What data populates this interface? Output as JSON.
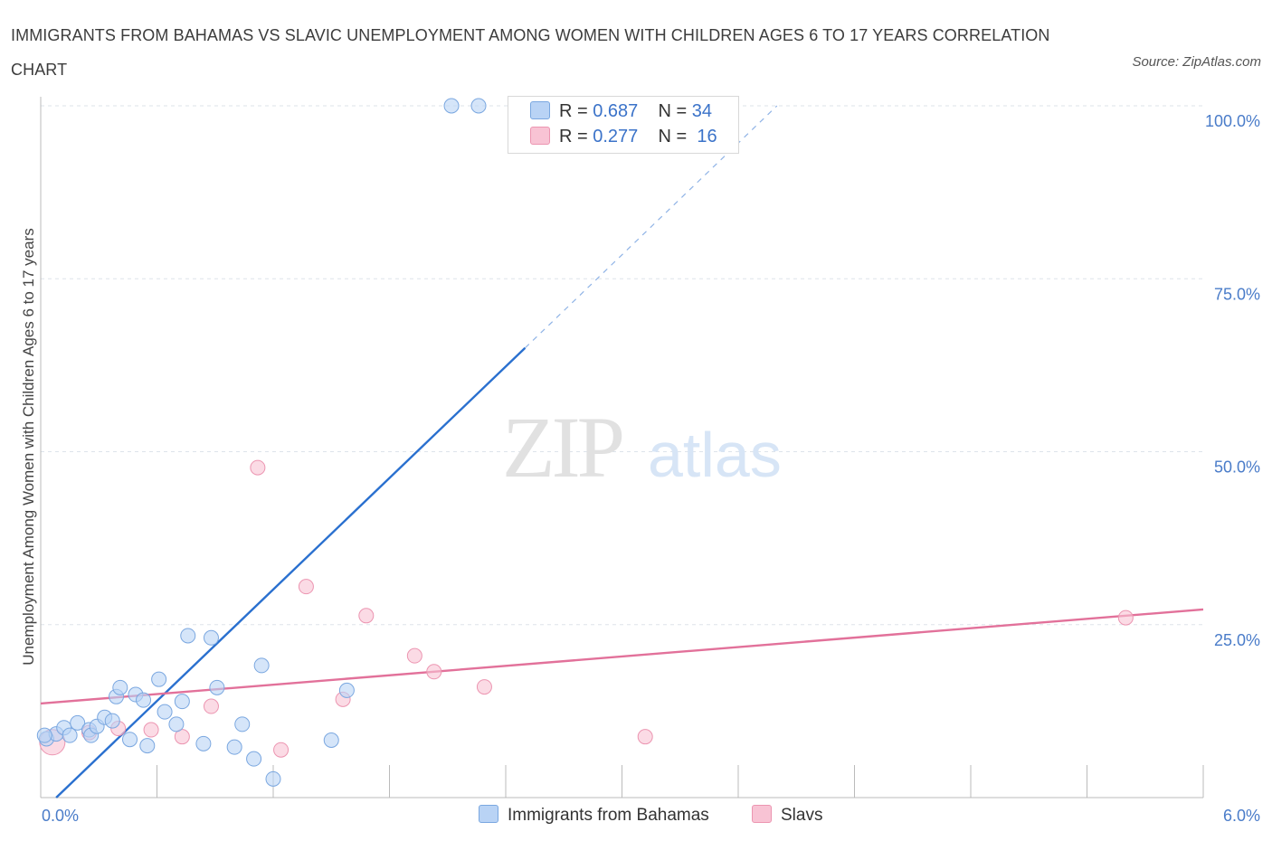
{
  "title": "IMMIGRANTS FROM BAHAMAS VS SLAVIC UNEMPLOYMENT AMONG WOMEN WITH CHILDREN AGES 6 TO 17 YEARS CORRELATION CHART",
  "source": "Source: ZipAtlas.com",
  "watermark": {
    "zip": "ZIP",
    "atlas": "atlas"
  },
  "legend": {
    "r_label": "R =",
    "n_label": "N =",
    "series1": {
      "r": "0.687",
      "n": "34"
    },
    "series2": {
      "r": "0.277",
      "n": "16"
    }
  },
  "colors": {
    "blue_fill": "#b9d3f5",
    "blue_stroke": "#7aa7e0",
    "blue_line": "#2a70cf",
    "pink_fill": "#f8c3d4",
    "pink_stroke": "#ec95b1",
    "pink_line": "#e2719a",
    "tick_text": "#4a7cc9",
    "grid": "#dde3ea"
  },
  "chart_data": {
    "type": "scatter",
    "title": "IMMIGRANTS FROM BAHAMAS VS SLAVIC UNEMPLOYMENT AMONG WOMEN WITH CHILDREN AGES 6 TO 17 YEARS CORRELATION CHART",
    "xlabel": "",
    "ylabel": "Unemployment Among Women with Children Ages 6 to 17 years",
    "xlim": [
      0,
      6
    ],
    "ylim": [
      0,
      100
    ],
    "x_tick_labels": [
      "0.0%",
      "6.0%"
    ],
    "y_tick_labels": [
      "100.0%",
      "75.0%",
      "50.0%",
      "25.0%"
    ],
    "y_ticks": [
      100,
      75,
      50,
      25
    ],
    "grid": true,
    "legend_position": "top-center",
    "series": [
      {
        "name": "Immigrants from Bahamas",
        "r": 0.687,
        "n": 34,
        "trend": {
          "x0": 0.08,
          "y0": 0,
          "x1": 2.5,
          "y1": 65,
          "dashed_to": [
            3.8,
            100
          ]
        },
        "points": [
          [
            0.03,
            8.5
          ],
          [
            0.08,
            9.2
          ],
          [
            0.12,
            10.1
          ],
          [
            0.15,
            9.0
          ],
          [
            0.19,
            10.8
          ],
          [
            0.25,
            9.8
          ],
          [
            0.26,
            9.0
          ],
          [
            0.29,
            10.3
          ],
          [
            0.33,
            11.6
          ],
          [
            0.37,
            11.1
          ],
          [
            0.39,
            14.6
          ],
          [
            0.41,
            15.9
          ],
          [
            0.46,
            8.4
          ],
          [
            0.49,
            14.9
          ],
          [
            0.53,
            14.1
          ],
          [
            0.55,
            7.5
          ],
          [
            0.61,
            17.1
          ],
          [
            0.64,
            12.4
          ],
          [
            0.7,
            10.6
          ],
          [
            0.73,
            13.9
          ],
          [
            0.76,
            23.4
          ],
          [
            0.84,
            7.8
          ],
          [
            0.88,
            23.1
          ],
          [
            0.91,
            15.9
          ],
          [
            1.0,
            7.3
          ],
          [
            1.04,
            10.6
          ],
          [
            1.1,
            5.6
          ],
          [
            1.14,
            19.1
          ],
          [
            1.2,
            2.7
          ],
          [
            1.5,
            8.3
          ],
          [
            1.58,
            15.5
          ],
          [
            2.12,
            100
          ],
          [
            2.26,
            100
          ],
          [
            0.02,
            9.0
          ]
        ]
      },
      {
        "name": "Slavs",
        "r": 0.277,
        "n": 16,
        "trend": {
          "x0": 0,
          "y0": 13.6,
          "x1": 6,
          "y1": 27.2
        },
        "points": [
          [
            0.06,
            8.0
          ],
          [
            0.25,
            9.4
          ],
          [
            0.4,
            10.0
          ],
          [
            0.57,
            9.8
          ],
          [
            0.73,
            8.8
          ],
          [
            0.88,
            13.2
          ],
          [
            1.12,
            47.7
          ],
          [
            1.24,
            6.9
          ],
          [
            1.37,
            30.5
          ],
          [
            1.56,
            14.2
          ],
          [
            1.68,
            26.3
          ],
          [
            1.93,
            20.5
          ],
          [
            2.03,
            18.2
          ],
          [
            2.29,
            16.0
          ],
          [
            3.12,
            8.8
          ],
          [
            5.6,
            26.0
          ]
        ]
      }
    ]
  }
}
